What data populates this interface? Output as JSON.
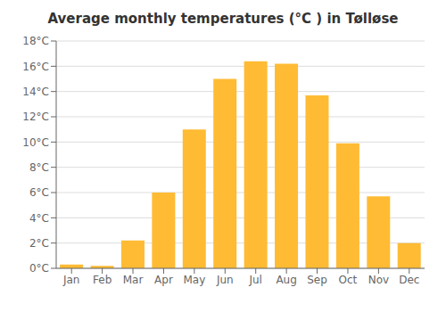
{
  "chart_data": {
    "type": "bar",
    "title": "Average monthly temperatures (°C ) in Tølløse",
    "categories": [
      "Jan",
      "Feb",
      "Mar",
      "Apr",
      "May",
      "Jun",
      "Jul",
      "Aug",
      "Sep",
      "Oct",
      "Nov",
      "Dec"
    ],
    "values": [
      0.3,
      0.2,
      2.2,
      6.0,
      11.0,
      15.0,
      16.4,
      16.2,
      13.7,
      9.9,
      5.7,
      2.0
    ],
    "color": "#FFBB33",
    "ylim": [
      0,
      18
    ],
    "yticks": [
      {
        "value": 0,
        "label": "0°C"
      },
      {
        "value": 2,
        "label": "2°C"
      },
      {
        "value": 4,
        "label": "4°C"
      },
      {
        "value": 6,
        "label": "6°C"
      },
      {
        "value": 8,
        "label": "8°C"
      },
      {
        "value": 10,
        "label": "10°C"
      },
      {
        "value": 12,
        "label": "12°C"
      },
      {
        "value": 14,
        "label": "14°C"
      },
      {
        "value": 16,
        "label": "16°C"
      },
      {
        "value": 18,
        "label": "18°C"
      }
    ],
    "grid": true
  }
}
